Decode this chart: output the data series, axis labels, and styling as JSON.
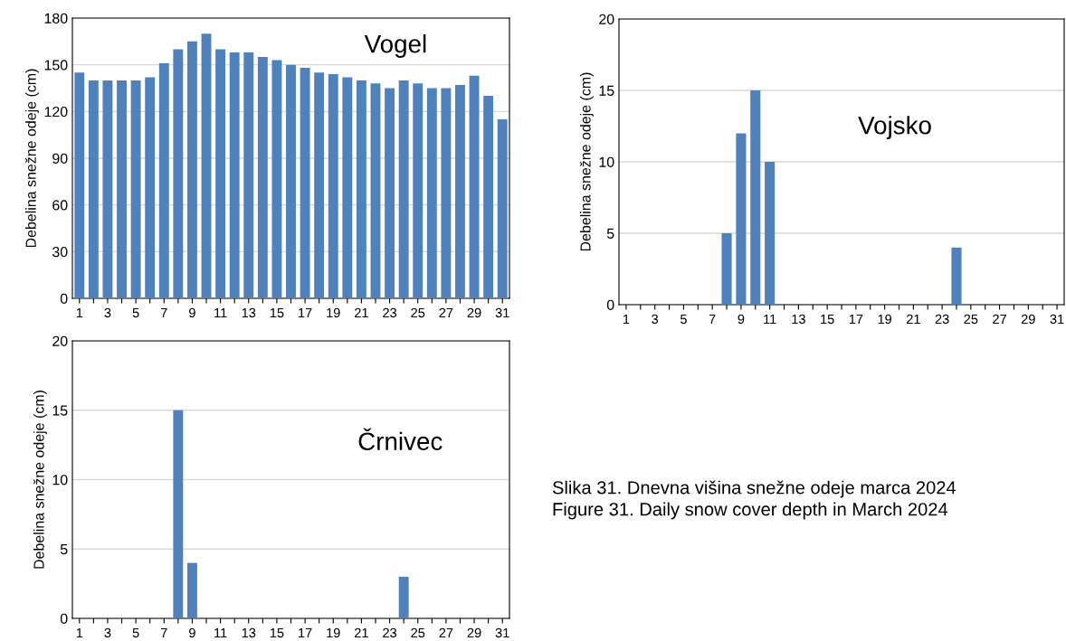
{
  "chart_data": [
    {
      "type": "bar",
      "title": "Vogel",
      "ylabel": "Debelina snežne odeje (cm)",
      "categories": [
        "1",
        null,
        "3",
        null,
        "5",
        null,
        "7",
        null,
        "9",
        null,
        "11",
        null,
        "13",
        null,
        "15",
        null,
        "17",
        null,
        "19",
        null,
        "21",
        null,
        "23",
        null,
        "25",
        null,
        "27",
        null,
        "29",
        null,
        "31"
      ],
      "color": "#4f81bd",
      "values": [
        145,
        140,
        140,
        140,
        140,
        142,
        151,
        160,
        165,
        170,
        160,
        158,
        158,
        155,
        153,
        150,
        148,
        145,
        144,
        142,
        140,
        138,
        135,
        140,
        138,
        135,
        135,
        137,
        143,
        130,
        115
      ],
      "ylim": [
        0,
        180
      ],
      "yticks": [
        0,
        30,
        60,
        90,
        120,
        150,
        180
      ],
      "grid": "y",
      "legend": false
    },
    {
      "type": "bar",
      "title": "Vojsko",
      "ylabel": "Debelina snežne odeje (cm)",
      "categories": [
        "1",
        null,
        "3",
        null,
        "5",
        null,
        "7",
        null,
        "9",
        null,
        "11",
        null,
        "13",
        null,
        "15",
        null,
        "17",
        null,
        "19",
        null,
        "21",
        null,
        "23",
        null,
        "25",
        null,
        "27",
        null,
        "29",
        null,
        "31"
      ],
      "color": "#4f81bd",
      "values": [
        0,
        0,
        0,
        0,
        0,
        0,
        0,
        5,
        12,
        15,
        10,
        0,
        0,
        0,
        0,
        0,
        0,
        0,
        0,
        0,
        0,
        0,
        0,
        4,
        0,
        0,
        0,
        0,
        0,
        0,
        0
      ],
      "ylim": [
        0,
        20
      ],
      "yticks": [
        0,
        5,
        10,
        15,
        20
      ],
      "grid": "y",
      "legend": false
    },
    {
      "type": "bar",
      "title": "Črnivec",
      "ylabel": "Debelina snežne odeje (cm)",
      "categories": [
        "1",
        null,
        "3",
        null,
        "5",
        null,
        "7",
        null,
        "9",
        null,
        "11",
        null,
        "13",
        null,
        "15",
        null,
        "17",
        null,
        "19",
        null,
        "21",
        null,
        "23",
        null,
        "25",
        null,
        "27",
        null,
        "29",
        null,
        "31"
      ],
      "color": "#4f81bd",
      "values": [
        0,
        0,
        0,
        0,
        0,
        0,
        0,
        15,
        4,
        0,
        0,
        0,
        0,
        0,
        0,
        0,
        0,
        0,
        0,
        0,
        0,
        0,
        0,
        3,
        0,
        0,
        0,
        0,
        0,
        0,
        0
      ],
      "ylim": [
        0,
        20
      ],
      "yticks": [
        0,
        5,
        10,
        15,
        20
      ],
      "grid": "y",
      "legend": false,
      "annotations": [
        "Slika 31. Dnevna višina snežne odeje marca 2024",
        "Figure 31. Daily snow cover depth in March 2024"
      ]
    }
  ]
}
